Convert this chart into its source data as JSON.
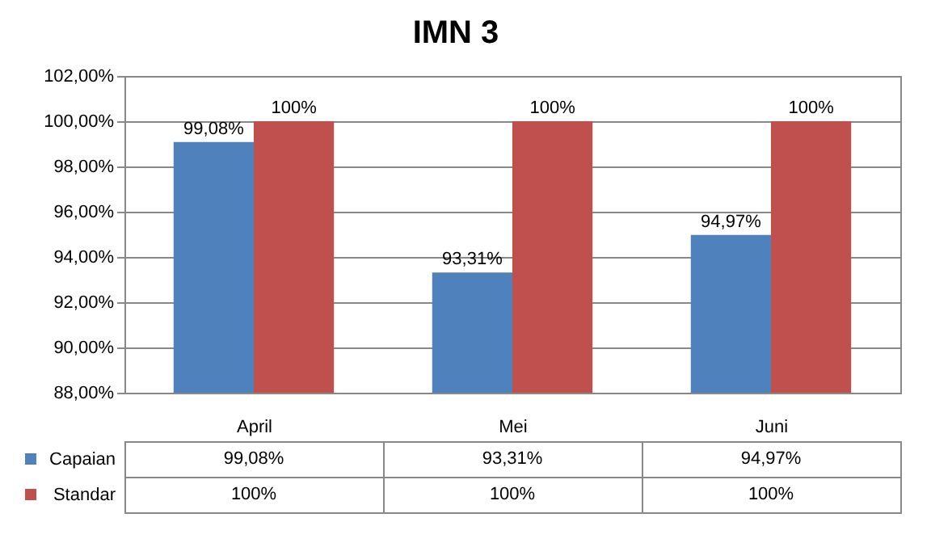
{
  "chart_data": {
    "type": "bar",
    "title": "IMN 3",
    "categories": [
      "April",
      "Mei",
      "Juni"
    ],
    "series": [
      {
        "name": "Capaian",
        "color": "#4f81bd",
        "values": [
          99.08,
          93.31,
          94.97
        ],
        "value_labels": [
          "99,08%",
          "93,31%",
          "94,97%"
        ]
      },
      {
        "name": "Standar",
        "color": "#c0504d",
        "values": [
          100,
          100,
          100
        ],
        "value_labels": [
          "100%",
          "100%",
          "100%"
        ]
      }
    ],
    "ylim": [
      88,
      102
    ],
    "yticks": [
      {
        "value": 88,
        "label": "88,00%"
      },
      {
        "value": 90,
        "label": "90,00%"
      },
      {
        "value": 92,
        "label": "92,00%"
      },
      {
        "value": 94,
        "label": "94,00%"
      },
      {
        "value": 96,
        "label": "96,00%"
      },
      {
        "value": 98,
        "label": "98,00%"
      },
      {
        "value": 100,
        "label": "100,00%"
      },
      {
        "value": 102,
        "label": "102,00%"
      }
    ],
    "grid": "y",
    "legend": "bottom"
  }
}
